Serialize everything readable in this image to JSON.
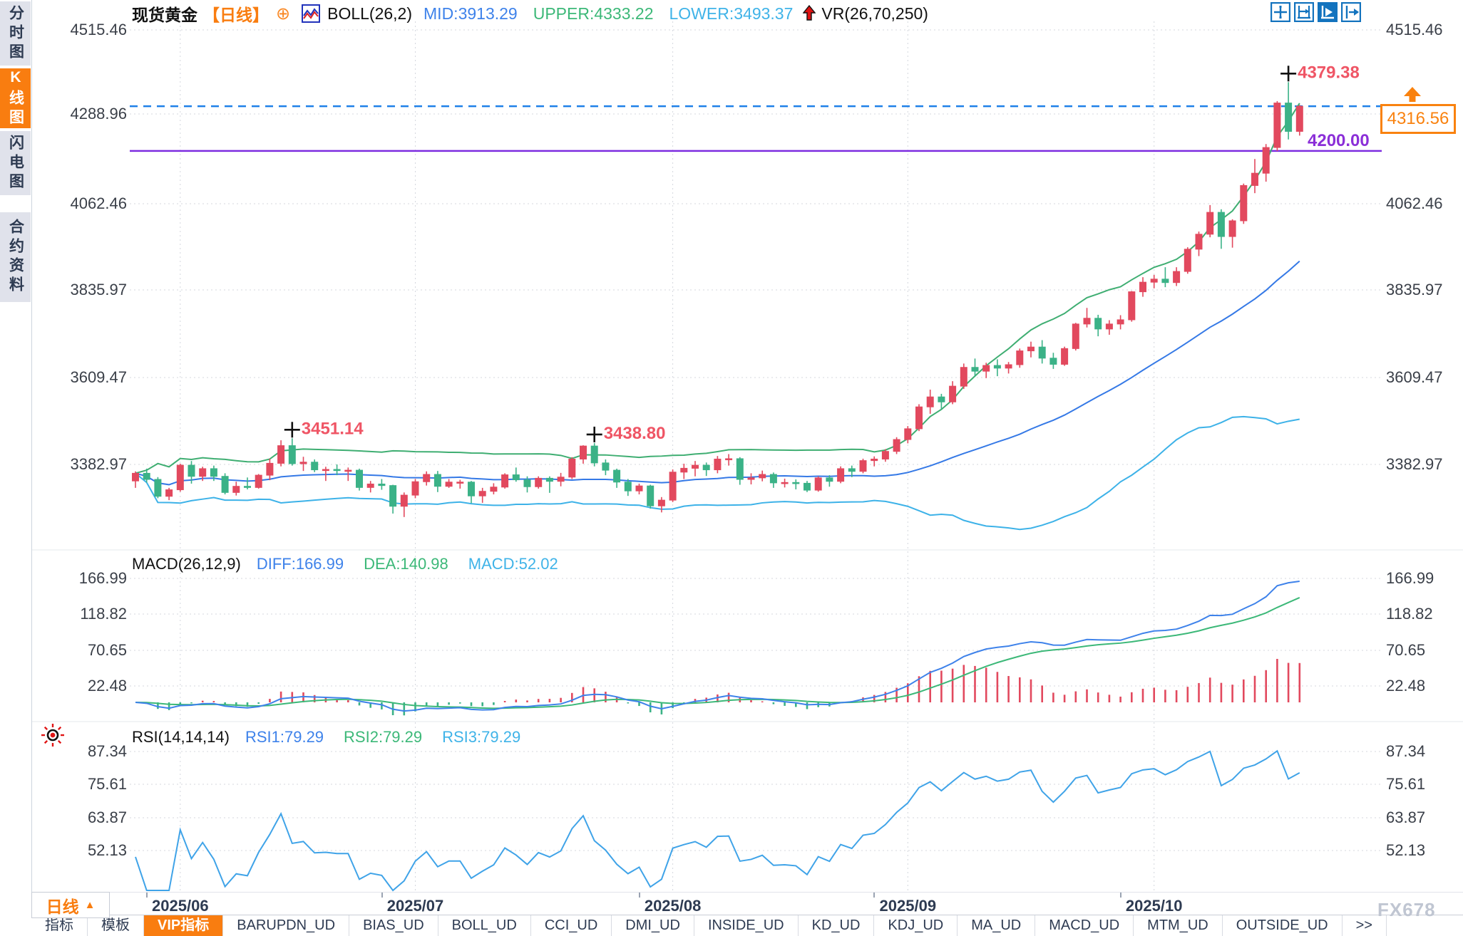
{
  "sidebar": {
    "items": [
      {
        "label": "分时图",
        "active": false
      },
      {
        "label": "K线图",
        "active": true
      },
      {
        "label": "闪电图",
        "active": false
      },
      {
        "label": "合约资料",
        "active": false
      }
    ]
  },
  "header": {
    "symbol": "现货黄金",
    "period_tag": "【日线】",
    "add_icon": "⊕",
    "boll_label": "BOLL(26,2)",
    "mid": "MID:3913.29",
    "upper": "UPPER:4333.22",
    "lower": "LOWER:3493.37",
    "vr_label": "VR(26,70,250)"
  },
  "chart_toolbar": {
    "icons": [
      "pan-crosshair-icon",
      "axis-range-icon",
      "auto-scale-icon",
      "jump-to-latest-icon"
    ]
  },
  "price_pane": {
    "axis_labels": [
      "4515.46",
      "4288.96",
      "4062.46",
      "3835.97",
      "3609.47",
      "3382.97"
    ],
    "current_price_label": "4316.56",
    "alert_price_label": "4200.00"
  },
  "macd_pane": {
    "title": "MACD(26,12,9)",
    "diff_label": "DIFF:166.99",
    "dea_label": "DEA:140.98",
    "macd_label": "MACD:52.02",
    "axis_labels": [
      "166.99",
      "118.82",
      "70.65",
      "22.48"
    ]
  },
  "rsi_pane": {
    "title": "RSI(14,14,14)",
    "rsi1_label": "RSI1:79.29",
    "rsi2_label": "RSI2:79.29",
    "rsi3_label": "RSI3:79.29",
    "axis_labels": [
      "87.34",
      "75.61",
      "63.87",
      "52.13"
    ]
  },
  "time_axis": {
    "labels": [
      "2025/06",
      "2025/07",
      "2025/08",
      "2025/09",
      "2025/10"
    ]
  },
  "timeframe_selector": {
    "label": "日线",
    "arrow": "▲"
  },
  "bottom_tabs": {
    "items": [
      {
        "label": "指标",
        "active": false
      },
      {
        "label": "模板",
        "active": false
      },
      {
        "label": "VIP指标",
        "active": true
      },
      {
        "label": "BARUPDN_UD",
        "active": false
      },
      {
        "label": "BIAS_UD",
        "active": false
      },
      {
        "label": "BOLL_UD",
        "active": false
      },
      {
        "label": "CCI_UD",
        "active": false
      },
      {
        "label": "DMI_UD",
        "active": false
      },
      {
        "label": "INSIDE_UD",
        "active": false
      },
      {
        "label": "KD_UD",
        "active": false
      },
      {
        "label": "KDJ_UD",
        "active": false
      },
      {
        "label": "MA_UD",
        "active": false
      },
      {
        "label": "MACD_UD",
        "active": false
      },
      {
        "label": "MTM_UD",
        "active": false
      },
      {
        "label": "OUTSIDE_UD",
        "active": false
      },
      {
        "label": ">>",
        "active": false
      }
    ]
  },
  "watermark": "FX678",
  "colors": {
    "up": "#e2495e",
    "down": "#3bb287",
    "boll_mid": "#3579e6",
    "boll_upper": "#3fae72",
    "boll_lower": "#3db2e8",
    "price_line": "#1f80e8",
    "alert_line": "#7d2ce0",
    "accent_orange": "#f97d10",
    "annotation_red": "#ef5565",
    "macd_diff": "#3e82ea",
    "macd_dea": "#3cb878",
    "rsi_line": "#3fa3e8",
    "grid": "#d4d7de",
    "axis_text": "#3a3f48"
  },
  "chart_data": {
    "type": "candlestick",
    "symbol": "现货黄金",
    "interval": "日线",
    "x_labels": [
      "2025/06",
      "2025/07",
      "2025/08",
      "2025/09",
      "2025/10"
    ],
    "month_start_indices": [
      4,
      25,
      48,
      69,
      91
    ],
    "y_axis_ticks": [
      4515.46,
      4288.96,
      4062.46,
      3835.97,
      3609.47,
      3382.97
    ],
    "current_price": 4316.56,
    "alert_price": 4200.0,
    "markers": [
      {
        "index": 14,
        "price": 3451.14,
        "label": "3451.14"
      },
      {
        "index": 41,
        "price": 3438.8,
        "label": "3438.80"
      },
      {
        "index": 103,
        "price": 4379.38,
        "label": "4379.38"
      }
    ],
    "boll": {
      "period": 26,
      "mult": 2,
      "mid": 3913.29,
      "upper": 4333.22,
      "lower": 3493.37
    },
    "macd": {
      "params": [
        26,
        12,
        9
      ],
      "diff": 166.99,
      "dea": 140.98,
      "macd": 52.02,
      "ticks": [
        166.99,
        118.82,
        70.65,
        22.48
      ]
    },
    "rsi": {
      "params": [
        14,
        14,
        14
      ],
      "rsi1": 79.29,
      "rsi2": 79.29,
      "rsi3": 79.29,
      "ticks": [
        87.34,
        75.61,
        63.87,
        52.13
      ]
    },
    "ohlc": [
      [
        3340,
        3365,
        3322,
        3360
      ],
      [
        3360,
        3372,
        3336,
        3344
      ],
      [
        3344,
        3350,
        3295,
        3300
      ],
      [
        3300,
        3322,
        3290,
        3317
      ],
      [
        3317,
        3385,
        3312,
        3381
      ],
      [
        3381,
        3392,
        3333,
        3352
      ],
      [
        3352,
        3377,
        3340,
        3372
      ],
      [
        3372,
        3380,
        3340,
        3352
      ],
      [
        3352,
        3360,
        3305,
        3310
      ],
      [
        3310,
        3338,
        3302,
        3326
      ],
      [
        3326,
        3349,
        3318,
        3323
      ],
      [
        3323,
        3358,
        3320,
        3355
      ],
      [
        3355,
        3398,
        3342,
        3386
      ],
      [
        3386,
        3446,
        3378,
        3432
      ],
      [
        3432,
        3451.14,
        3380,
        3385
      ],
      [
        3385,
        3403,
        3366,
        3389
      ],
      [
        3389,
        3396,
        3363,
        3369
      ],
      [
        3369,
        3377,
        3340,
        3370
      ],
      [
        3370,
        3383,
        3355,
        3368
      ],
      [
        3368,
        3375,
        3340,
        3368
      ],
      [
        3368,
        3372,
        3315,
        3323
      ],
      [
        3323,
        3340,
        3310,
        3332
      ],
      [
        3332,
        3345,
        3317,
        3328
      ],
      [
        3328,
        3330,
        3255,
        3274
      ],
      [
        3274,
        3310,
        3246,
        3303
      ],
      [
        3303,
        3345,
        3295,
        3338
      ],
      [
        3338,
        3365,
        3328,
        3357
      ],
      [
        3357,
        3366,
        3311,
        3326
      ],
      [
        3326,
        3345,
        3322,
        3337
      ],
      [
        3337,
        3343,
        3320,
        3337
      ],
      [
        3337,
        3340,
        3282,
        3301
      ],
      [
        3301,
        3322,
        3283,
        3313
      ],
      [
        3313,
        3334,
        3305,
        3324
      ],
      [
        3324,
        3360,
        3320,
        3356
      ],
      [
        3356,
        3375,
        3338,
        3343
      ],
      [
        3343,
        3352,
        3310,
        3325
      ],
      [
        3325,
        3352,
        3320,
        3347
      ],
      [
        3347,
        3352,
        3309,
        3339
      ],
      [
        3339,
        3361,
        3326,
        3350
      ],
      [
        3350,
        3402,
        3345,
        3397
      ],
      [
        3397,
        3433,
        3385,
        3431
      ],
      [
        3431,
        3438.8,
        3378,
        3387
      ],
      [
        3387,
        3396,
        3355,
        3368
      ],
      [
        3368,
        3372,
        3322,
        3337
      ],
      [
        3337,
        3345,
        3301,
        3314
      ],
      [
        3314,
        3333,
        3305,
        3327
      ],
      [
        3327,
        3330,
        3268,
        3275
      ],
      [
        3275,
        3298,
        3258,
        3290
      ],
      [
        3290,
        3370,
        3285,
        3363
      ],
      [
        3363,
        3385,
        3345,
        3373
      ],
      [
        3373,
        3392,
        3352,
        3381
      ],
      [
        3381,
        3388,
        3353,
        3369
      ],
      [
        3369,
        3405,
        3360,
        3397
      ],
      [
        3397,
        3410,
        3380,
        3398
      ],
      [
        3398,
        3402,
        3330,
        3344
      ],
      [
        3344,
        3360,
        3331,
        3348
      ],
      [
        3348,
        3367,
        3339,
        3357
      ],
      [
        3357,
        3362,
        3322,
        3335
      ],
      [
        3335,
        3346,
        3323,
        3336
      ],
      [
        3336,
        3344,
        3318,
        3334
      ],
      [
        3334,
        3340,
        3311,
        3316
      ],
      [
        3316,
        3352,
        3312,
        3348
      ],
      [
        3348,
        3355,
        3325,
        3339
      ],
      [
        3339,
        3378,
        3334,
        3372
      ],
      [
        3372,
        3380,
        3350,
        3365
      ],
      [
        3365,
        3398,
        3360,
        3393
      ],
      [
        3393,
        3404,
        3378,
        3397
      ],
      [
        3397,
        3423,
        3390,
        3417
      ],
      [
        3417,
        3454,
        3410,
        3448
      ],
      [
        3448,
        3483,
        3438,
        3476
      ],
      [
        3476,
        3540,
        3470,
        3533
      ],
      [
        3533,
        3578,
        3515,
        3559
      ],
      [
        3559,
        3567,
        3527,
        3546
      ],
      [
        3546,
        3600,
        3540,
        3587
      ],
      [
        3587,
        3646,
        3580,
        3636
      ],
      [
        3636,
        3659,
        3612,
        3626
      ],
      [
        3626,
        3648,
        3608,
        3641
      ],
      [
        3641,
        3657,
        3613,
        3634
      ],
      [
        3634,
        3650,
        3620,
        3643
      ],
      [
        3643,
        3685,
        3635,
        3679
      ],
      [
        3679,
        3703,
        3662,
        3689
      ],
      [
        3689,
        3707,
        3646,
        3660
      ],
      [
        3660,
        3674,
        3632,
        3644
      ],
      [
        3644,
        3690,
        3640,
        3685
      ],
      [
        3685,
        3752,
        3680,
        3749
      ],
      [
        3749,
        3791,
        3740,
        3764
      ],
      [
        3764,
        3773,
        3717,
        3736
      ],
      [
        3736,
        3759,
        3721,
        3749
      ],
      [
        3749,
        3772,
        3735,
        3760
      ],
      [
        3760,
        3835,
        3755,
        3833
      ],
      [
        3833,
        3871,
        3820,
        3858
      ],
      [
        3858,
        3877,
        3842,
        3866
      ],
      [
        3866,
        3897,
        3845,
        3857
      ],
      [
        3857,
        3897,
        3848,
        3886
      ],
      [
        3886,
        3949,
        3880,
        3944
      ],
      [
        3944,
        3990,
        3926,
        3983
      ],
      [
        3983,
        4059,
        3975,
        4040
      ],
      [
        4040,
        4048,
        3945,
        3977
      ],
      [
        3977,
        4022,
        3948,
        4018
      ],
      [
        4018,
        4115,
        4010,
        4110
      ],
      [
        4110,
        4179,
        4090,
        4142
      ],
      [
        4142,
        4218,
        4120,
        4209
      ],
      [
        4209,
        4330,
        4200,
        4325
      ],
      [
        4325,
        4379.38,
        4230,
        4251
      ],
      [
        4251,
        4320,
        4240,
        4316.56
      ]
    ]
  }
}
